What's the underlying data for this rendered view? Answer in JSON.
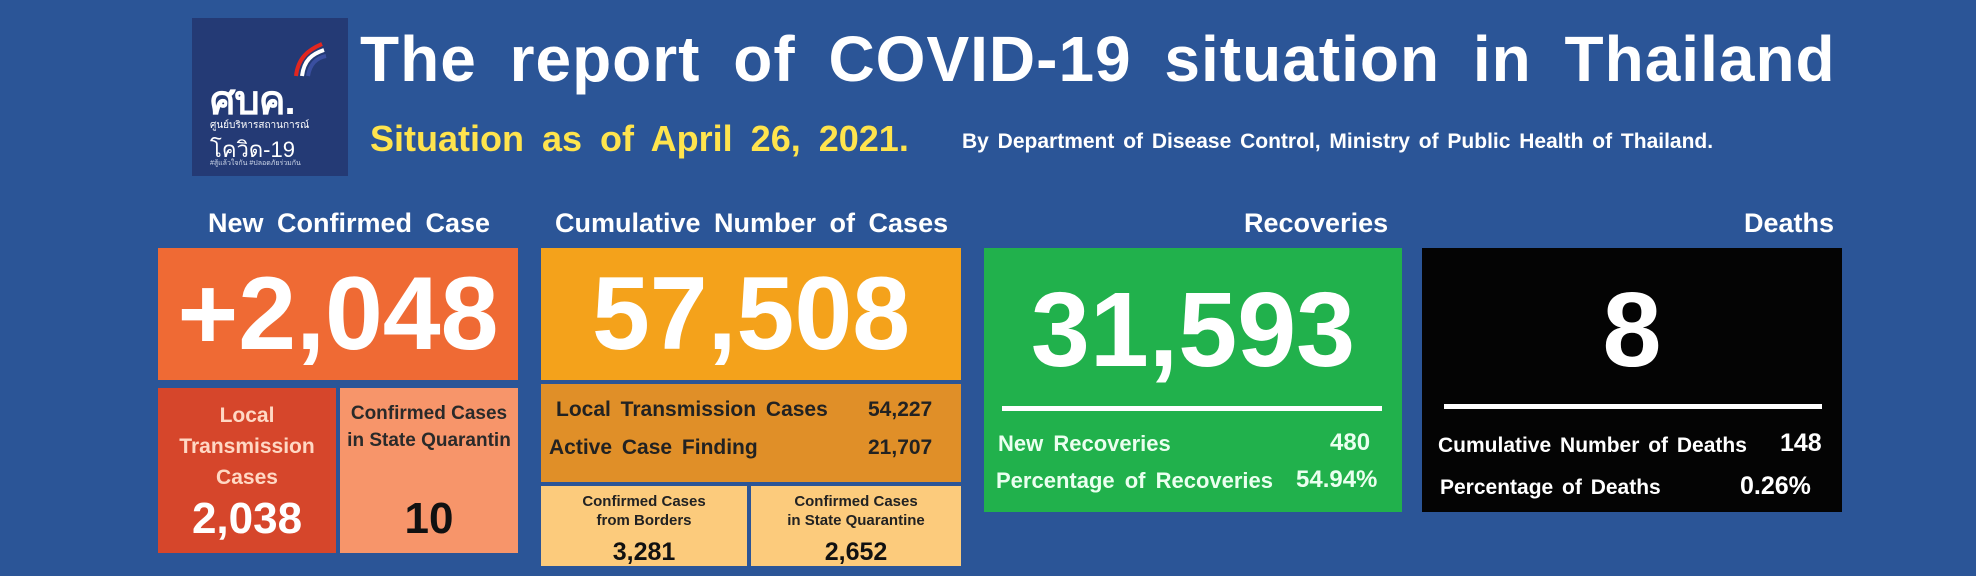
{
  "logo": {
    "mark": "ศบค.",
    "sub1": "ศูนย์บริหารสถานการณ์",
    "sub2": "โควิด-19",
    "sub3": "#สู้แล้วใจกัน #ปลอดภัยร่วมกัน",
    "flag_colors": [
      "#e2261f",
      "#ffffff",
      "#3a4fa0"
    ]
  },
  "header": {
    "title": "The report of COVID-19 situation in Thailand",
    "situation": "Situation as of April 26, 2021.",
    "byline": "By Department of Disease Control, Ministry of Public Health of Thailand."
  },
  "new_confirmed": {
    "heading": "New Confirmed Case",
    "value": "+2,048",
    "local_label": [
      "Local",
      "Transmission",
      "Cases"
    ],
    "local_value": "2,038",
    "state_quarantine_label": [
      "Confirmed Cases",
      "in State Quarantin"
    ],
    "state_quarantine_value": "10"
  },
  "cumulative": {
    "heading": "Cumulative Number of Cases",
    "value": "57,508",
    "local_transmission_label": "Local Transmission Cases",
    "local_transmission_value": "54,227",
    "active_case_finding_label": "Active Case Finding",
    "active_case_finding_value": "21,707",
    "borders_label": [
      "Confirmed Cases",
      "from Borders"
    ],
    "borders_value": "3,281",
    "quarantine_label": [
      "Confirmed Cases",
      "in State Quarantine"
    ],
    "quarantine_value": "2,652"
  },
  "recoveries": {
    "heading": "Recoveries",
    "value": "31,593",
    "new_label": "New Recoveries",
    "new_value": "480",
    "pct_label": "Percentage of Recoveries",
    "pct_value": "54.94%"
  },
  "deaths": {
    "heading": "Deaths",
    "value": "8",
    "cum_label": "Cumulative Number of Deaths",
    "cum_value": "148",
    "pct_label": "Percentage of Deaths",
    "pct_value": "0.26%"
  },
  "colors": {
    "background": "#2b5597",
    "new_confirmed": "#ef6a34",
    "local": "#d6462b",
    "state_quarantine": "#f7956a",
    "cumulative": "#f4a21b",
    "cumulative_mid": "#e08f28",
    "cumulative_sub": "#fccb7c",
    "recoveries": "#21b14c",
    "deaths": "#040404",
    "situation_text": "#ffe44d"
  }
}
